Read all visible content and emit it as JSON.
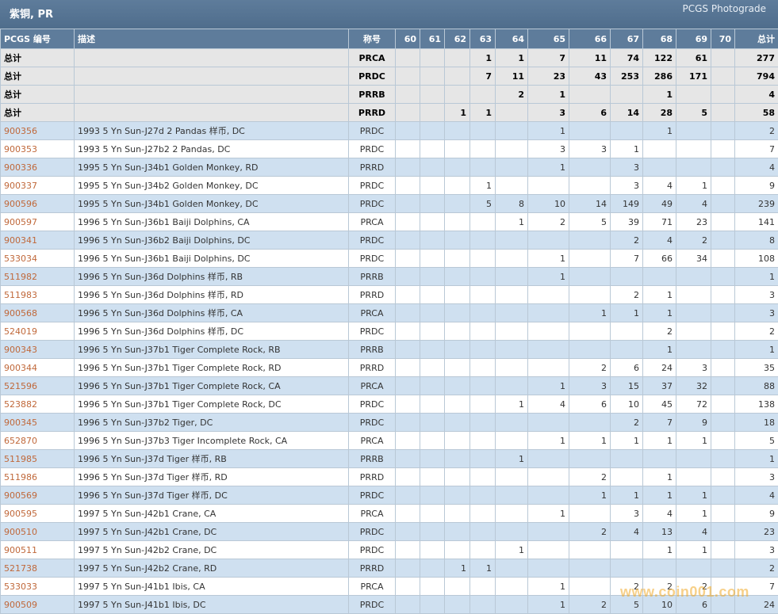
{
  "header": {
    "title": "紫铜, PR",
    "photograde_link": "PCGS Photograde"
  },
  "columns": [
    "PCGS 编号",
    "描述",
    "称号",
    "60",
    "61",
    "62",
    "63",
    "64",
    "65",
    "66",
    "67",
    "68",
    "69",
    "70",
    "总计"
  ],
  "totals": [
    [
      "总计",
      "",
      "PRCA",
      "",
      "",
      "",
      "1",
      "1",
      "7",
      "11",
      "74",
      "122",
      "61",
      "",
      "277"
    ],
    [
      "总计",
      "",
      "PRDC",
      "",
      "",
      "",
      "7",
      "11",
      "23",
      "43",
      "253",
      "286",
      "171",
      "",
      "794"
    ],
    [
      "总计",
      "",
      "PRRB",
      "",
      "",
      "",
      "",
      "2",
      "1",
      "",
      "",
      "1",
      "",
      "",
      "4"
    ],
    [
      "总计",
      "",
      "PRRD",
      "",
      "",
      "1",
      "1",
      "",
      "3",
      "6",
      "14",
      "28",
      "5",
      "",
      "58"
    ]
  ],
  "rows": [
    [
      "900356",
      "1993 5 Yn Sun-J27d 2 Pandas 样币, DC",
      "PRDC",
      "",
      "",
      "",
      "",
      "",
      "1",
      "",
      "",
      "1",
      "",
      "",
      "2"
    ],
    [
      "900353",
      "1993 5 Yn Sun-J27b2 2 Pandas, DC",
      "PRDC",
      "",
      "",
      "",
      "",
      "",
      "3",
      "3",
      "1",
      "",
      "",
      "",
      "7"
    ],
    [
      "900336",
      "1995 5 Yn Sun-J34b1 Golden Monkey, RD",
      "PRRD",
      "",
      "",
      "",
      "",
      "",
      "1",
      "",
      "3",
      "",
      "",
      "",
      "4"
    ],
    [
      "900337",
      "1995 5 Yn Sun-J34b2 Golden Monkey, DC",
      "PRDC",
      "",
      "",
      "",
      "1",
      "",
      "",
      "",
      "3",
      "4",
      "1",
      "",
      "9"
    ],
    [
      "900596",
      "1995 5 Yn Sun-J34b1 Golden Monkey, DC",
      "PRDC",
      "",
      "",
      "",
      "5",
      "8",
      "10",
      "14",
      "149",
      "49",
      "4",
      "",
      "239"
    ],
    [
      "900597",
      "1996 5 Yn Sun-J36b1 Baiji Dolphins, CA",
      "PRCA",
      "",
      "",
      "",
      "",
      "1",
      "2",
      "5",
      "39",
      "71",
      "23",
      "",
      "141"
    ],
    [
      "900341",
      "1996 5 Yn Sun-J36b2 Baiji Dolphins, DC",
      "PRDC",
      "",
      "",
      "",
      "",
      "",
      "",
      "",
      "2",
      "4",
      "2",
      "",
      "8"
    ],
    [
      "533034",
      "1996 5 Yn Sun-J36b1 Baiji Dolphins, DC",
      "PRDC",
      "",
      "",
      "",
      "",
      "",
      "1",
      "",
      "7",
      "66",
      "34",
      "",
      "108"
    ],
    [
      "511982",
      "1996 5 Yn Sun-J36d Dolphins 样币, RB",
      "PRRB",
      "",
      "",
      "",
      "",
      "",
      "1",
      "",
      "",
      "",
      "",
      "",
      "1"
    ],
    [
      "511983",
      "1996 5 Yn Sun-J36d Dolphins 样币, RD",
      "PRRD",
      "",
      "",
      "",
      "",
      "",
      "",
      "",
      "2",
      "1",
      "",
      "",
      "3"
    ],
    [
      "900568",
      "1996 5 Yn Sun-J36d Dolphins 样币, CA",
      "PRCA",
      "",
      "",
      "",
      "",
      "",
      "",
      "1",
      "1",
      "1",
      "",
      "",
      "3"
    ],
    [
      "524019",
      "1996 5 Yn Sun-J36d Dolphins 样币, DC",
      "PRDC",
      "",
      "",
      "",
      "",
      "",
      "",
      "",
      "",
      "2",
      "",
      "",
      "2"
    ],
    [
      "900343",
      "1996 5 Yn Sun-J37b1 Tiger Complete Rock, RB",
      "PRRB",
      "",
      "",
      "",
      "",
      "",
      "",
      "",
      "",
      "1",
      "",
      "",
      "1"
    ],
    [
      "900344",
      "1996 5 Yn Sun-J37b1 Tiger Complete Rock, RD",
      "PRRD",
      "",
      "",
      "",
      "",
      "",
      "",
      "2",
      "6",
      "24",
      "3",
      "",
      "35"
    ],
    [
      "521596",
      "1996 5 Yn Sun-J37b1 Tiger Complete Rock, CA",
      "PRCA",
      "",
      "",
      "",
      "",
      "",
      "1",
      "3",
      "15",
      "37",
      "32",
      "",
      "88"
    ],
    [
      "523882",
      "1996 5 Yn Sun-J37b1 Tiger Complete Rock, DC",
      "PRDC",
      "",
      "",
      "",
      "",
      "1",
      "4",
      "6",
      "10",
      "45",
      "72",
      "",
      "138"
    ],
    [
      "900345",
      "1996 5 Yn Sun-J37b2 Tiger, DC",
      "PRDC",
      "",
      "",
      "",
      "",
      "",
      "",
      "",
      "2",
      "7",
      "9",
      "",
      "18"
    ],
    [
      "652870",
      "1996 5 Yn Sun-J37b3 Tiger Incomplete Rock, CA",
      "PRCA",
      "",
      "",
      "",
      "",
      "",
      "1",
      "1",
      "1",
      "1",
      "1",
      "",
      "5"
    ],
    [
      "511985",
      "1996 5 Yn Sun-J37d Tiger 样币, RB",
      "PRRB",
      "",
      "",
      "",
      "",
      "1",
      "",
      "",
      "",
      "",
      "",
      "",
      "1"
    ],
    [
      "511986",
      "1996 5 Yn Sun-J37d Tiger 样币, RD",
      "PRRD",
      "",
      "",
      "",
      "",
      "",
      "",
      "2",
      "",
      "1",
      "",
      "",
      "3"
    ],
    [
      "900569",
      "1996 5 Yn Sun-J37d Tiger 样币, DC",
      "PRDC",
      "",
      "",
      "",
      "",
      "",
      "",
      "1",
      "1",
      "1",
      "1",
      "",
      "4"
    ],
    [
      "900595",
      "1997 5 Yn Sun-J42b1 Crane, CA",
      "PRCA",
      "",
      "",
      "",
      "",
      "",
      "1",
      "",
      "3",
      "4",
      "1",
      "",
      "9"
    ],
    [
      "900510",
      "1997 5 Yn Sun-J42b1 Crane, DC",
      "PRDC",
      "",
      "",
      "",
      "",
      "",
      "",
      "2",
      "4",
      "13",
      "4",
      "",
      "23"
    ],
    [
      "900511",
      "1997 5 Yn Sun-J42b2 Crane, DC",
      "PRDC",
      "",
      "",
      "",
      "",
      "1",
      "",
      "",
      "",
      "1",
      "1",
      "",
      "3"
    ],
    [
      "521738",
      "1997 5 Yn Sun-J42b2 Crane, RD",
      "PRRD",
      "",
      "",
      "1",
      "1",
      "",
      "",
      "",
      "",
      "",
      "",
      "",
      "2"
    ],
    [
      "533033",
      "1997 5 Yn Sun-J41b1 Ibis, CA",
      "PRCA",
      "",
      "",
      "",
      "",
      "",
      "1",
      "",
      "2",
      "2",
      "2",
      "",
      "7"
    ],
    [
      "900509",
      "1997 5 Yn Sun-J41b1 Ibis, DC",
      "PRDC",
      "",
      "",
      "",
      "",
      "",
      "1",
      "2",
      "5",
      "10",
      "6",
      "",
      "24"
    ]
  ],
  "watermark": "www.coin001.com"
}
